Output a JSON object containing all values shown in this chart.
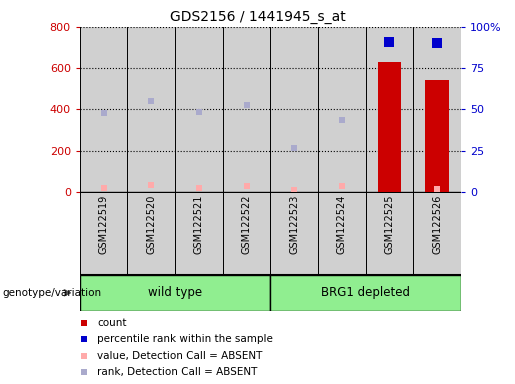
{
  "title": "GDS2156 / 1441945_s_at",
  "samples": [
    "GSM122519",
    "GSM122520",
    "GSM122521",
    "GSM122522",
    "GSM122523",
    "GSM122524",
    "GSM122525",
    "GSM122526"
  ],
  "count_values": [
    null,
    null,
    null,
    null,
    null,
    null,
    630,
    545
  ],
  "rank_values": [
    null,
    null,
    null,
    null,
    null,
    null,
    91,
    90
  ],
  "absent_value": [
    20,
    35,
    20,
    30,
    10,
    28,
    null,
    15
  ],
  "absent_rank": [
    385,
    440,
    390,
    420,
    215,
    350,
    null,
    null
  ],
  "left_ylim": [
    0,
    800
  ],
  "right_ylim": [
    0,
    100
  ],
  "left_yticks": [
    0,
    200,
    400,
    600,
    800
  ],
  "right_yticks": [
    0,
    25,
    50,
    75,
    100
  ],
  "right_yticklabels": [
    "0",
    "25",
    "50",
    "75",
    "100%"
  ],
  "left_tick_color": "#cc0000",
  "right_tick_color": "#0000cc",
  "bar_color": "#cc0000",
  "rank_dot_color": "#0000cc",
  "absent_value_color": "#ffaaaa",
  "absent_rank_color": "#aaaacc",
  "col_bg_color": "#d0d0d0",
  "legend_items": [
    {
      "label": "count",
      "color": "#cc0000"
    },
    {
      "label": "percentile rank within the sample",
      "color": "#0000cc"
    },
    {
      "label": "value, Detection Call = ABSENT",
      "color": "#ffaaaa"
    },
    {
      "label": "rank, Detection Call = ABSENT",
      "color": "#aaaacc"
    }
  ],
  "genotype_label": "genotype/variation",
  "wild_type_label": "wild type",
  "brg1_label": "BRG1 depleted",
  "group_color": "#90ee90"
}
